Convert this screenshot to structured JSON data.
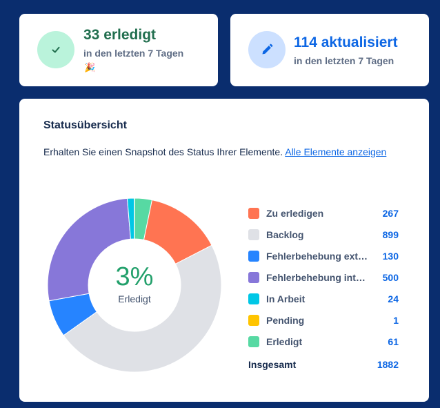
{
  "stats": {
    "done": {
      "value": "33 erledigt",
      "sub": "in den letzten 7 Tagen",
      "emoji": "🎉",
      "icon": "check-icon",
      "color": "#216e4e",
      "icon_bg": "#baf3db"
    },
    "updated": {
      "value": "114 aktualisiert",
      "sub": "in den letzten 7 Tagen",
      "icon": "pencil-icon",
      "color": "#0c66e4",
      "icon_bg": "#cce0ff"
    }
  },
  "status": {
    "title": "Statusübersicht",
    "description": "Erhalten Sie einen Snapshot des Status Ihrer Elemente.",
    "link": "Alle Elemente anzeigen",
    "center_percent": "3%",
    "center_label": "Erledigt",
    "total_label": "Insgesamt",
    "total": "1882"
  },
  "chart_data": {
    "type": "pie",
    "categories": [
      "Zu erledigen",
      "Backlog",
      "Fehlerbehebung ext…",
      "Fehlerbehebung int…",
      "In Arbeit",
      "Pending",
      "Erledigt"
    ],
    "values": [
      267,
      899,
      130,
      500,
      24,
      1,
      61
    ],
    "colors": [
      "#ff7452",
      "#dfe1e6",
      "#2684ff",
      "#8777d9",
      "#00c7e6",
      "#ffc400",
      "#57d9a3"
    ],
    "start_category": "Erledigt"
  }
}
